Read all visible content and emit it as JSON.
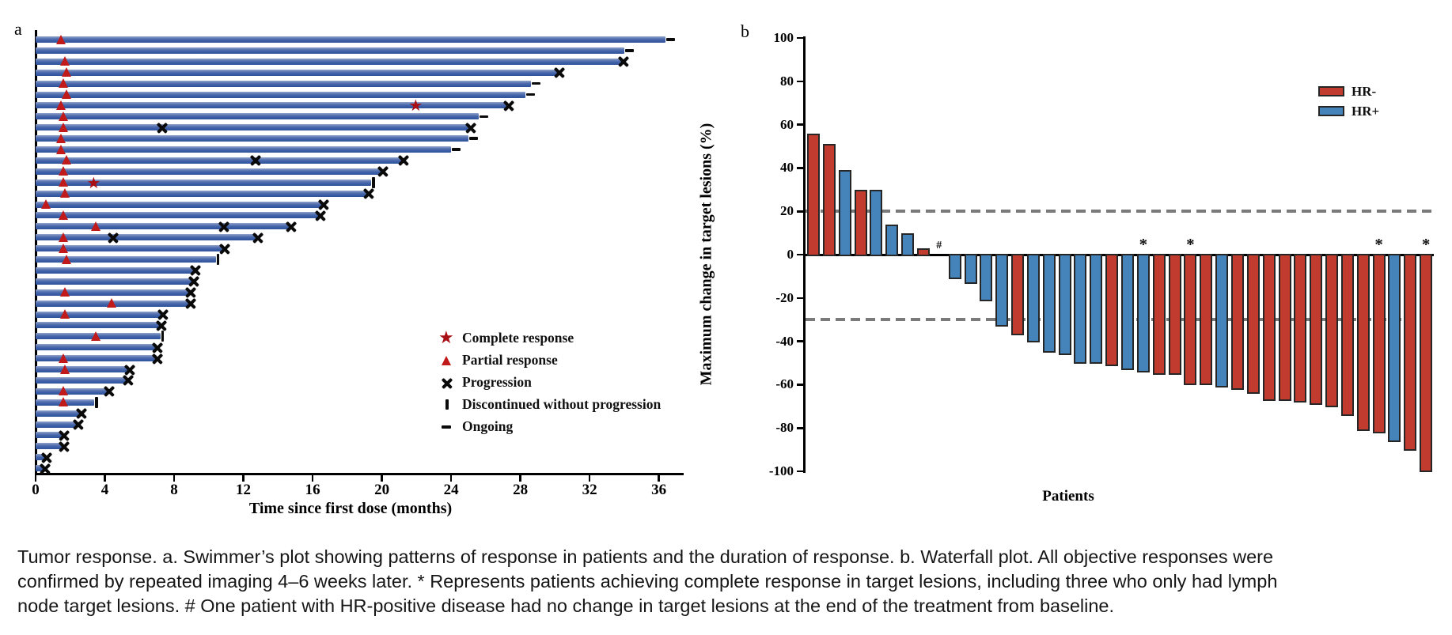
{
  "figure": {
    "panel_a_label": "a",
    "panel_b_label": "b"
  },
  "colors": {
    "swimmer_bar": "#3a5ea6",
    "response_red": "#c01a1a",
    "cr_star_red": "#a81016",
    "hr_neg": "#c13b2e",
    "hr_pos": "#4583bb",
    "bar_border": "#262626",
    "dashed_line": "#7a7a7a",
    "axis": "#000000"
  },
  "caption": {
    "lines": [
      "Tumor response. a. Swimmer’s plot showing patterns of response in patients and the duration of response. b. Waterfall plot. All objective responses were",
      "confirmed by repeated imaging 4–6 weeks later. * Represents patients achieving complete response in target lesions, including three who only had lymph",
      "node target lesions. # One patient with HR-positive disease had no change in target lesions at the end of the treatment from baseline."
    ]
  },
  "chart_data": [
    {
      "id": "swimmer",
      "type": "bar",
      "orientation": "horizontal",
      "xlabel": "Time since first dose (months)",
      "x_ticks": [
        0,
        4,
        8,
        12,
        16,
        20,
        24,
        28,
        32,
        36
      ],
      "xlim": [
        0,
        37.4
      ],
      "grid": false,
      "legend_position": "lower-right-inside",
      "legend": [
        {
          "symbol": "star",
          "label": "Complete response"
        },
        {
          "symbol": "triangle",
          "label": "Partial response"
        },
        {
          "symbol": "cross",
          "label": "Progression"
        },
        {
          "symbol": "vbar",
          "label": "Discontinued without progression"
        },
        {
          "symbol": "dash",
          "label": "Ongoing"
        }
      ],
      "bars": [
        {
          "months": 36.4,
          "pr": 1.5,
          "end": "ongoing"
        },
        {
          "months": 34.0,
          "end": "ongoing"
        },
        {
          "months": 33.9,
          "pr": 1.7,
          "end": "progression"
        },
        {
          "months": 30.2,
          "pr": 1.8,
          "end": "progression"
        },
        {
          "months": 28.6,
          "pr": 1.6,
          "end": "ongoing"
        },
        {
          "months": 28.3,
          "pr": 1.8,
          "end": "ongoing"
        },
        {
          "months": 27.3,
          "pr": 1.5,
          "cr": 22.0,
          "end": "progression"
        },
        {
          "months": 25.6,
          "pr": 1.6,
          "end": "ongoing"
        },
        {
          "months": 25.1,
          "pr": 1.6,
          "prog": [
            7.3
          ],
          "end": "progression"
        },
        {
          "months": 25.0,
          "pr": 1.5,
          "end": "ongoing"
        },
        {
          "months": 24.0,
          "pr": 1.5,
          "end": "ongoing"
        },
        {
          "months": 21.2,
          "pr": 1.8,
          "prog": [
            12.7
          ],
          "end": "progression"
        },
        {
          "months": 20.0,
          "pr": 1.6,
          "end": "progression"
        },
        {
          "months": 19.4,
          "pr": 1.6,
          "cr": 3.4,
          "end": "discontinued"
        },
        {
          "months": 19.2,
          "pr": 1.7,
          "end": "progression"
        },
        {
          "months": 16.6,
          "pr": 0.6,
          "end": "progression"
        },
        {
          "months": 16.4,
          "pr": 1.6,
          "end": "progression"
        },
        {
          "months": 14.7,
          "pr": 3.5,
          "prog": [
            10.9
          ],
          "end": "progression"
        },
        {
          "months": 12.8,
          "pr": 1.6,
          "prog": [
            4.5
          ],
          "end": "progression"
        },
        {
          "months": 10.9,
          "pr": 1.6,
          "end": "progression"
        },
        {
          "months": 10.4,
          "pr": 1.8,
          "end": "discontinued"
        },
        {
          "months": 9.2,
          "end": "progression"
        },
        {
          "months": 9.1,
          "end": "progression"
        },
        {
          "months": 8.9,
          "pr": 1.7,
          "end": "progression"
        },
        {
          "months": 8.9,
          "pr": 4.4,
          "end": "progression"
        },
        {
          "months": 7.3,
          "pr": 1.7,
          "end": "progression"
        },
        {
          "months": 7.2,
          "end": "progression"
        },
        {
          "months": 7.2,
          "pr": 3.5,
          "end": "discontinued"
        },
        {
          "months": 7.0,
          "end": "progression"
        },
        {
          "months": 7.0,
          "pr": 1.6,
          "end": "progression"
        },
        {
          "months": 5.4,
          "pr": 1.7,
          "end": "progression"
        },
        {
          "months": 5.3,
          "end": "progression"
        },
        {
          "months": 4.2,
          "pr": 1.6,
          "end": "progression"
        },
        {
          "months": 3.4,
          "pr": 1.6,
          "end": "discontinued"
        },
        {
          "months": 2.6,
          "end": "progression"
        },
        {
          "months": 2.4,
          "end": "progression"
        },
        {
          "months": 1.6,
          "end": "progression"
        },
        {
          "months": 1.6,
          "end": "progression"
        },
        {
          "months": 0.6,
          "end": "progression"
        },
        {
          "months": 0.5,
          "end": "progression"
        }
      ]
    },
    {
      "id": "waterfall",
      "type": "bar",
      "ylabel": "Maximum change in target lesions (%)",
      "xlabel": "Patients",
      "ylim": [
        -100,
        100
      ],
      "y_ticks": [
        100,
        80,
        60,
        40,
        20,
        0,
        -20,
        -40,
        -60,
        -80,
        -100
      ],
      "reference_lines": [
        20,
        -30
      ],
      "grid": false,
      "legend_position": "upper-right-inside",
      "legend": [
        {
          "label": "HR-",
          "group": "HR-"
        },
        {
          "label": "HR+",
          "group": "HR+"
        }
      ],
      "values": [
        {
          "value": 56,
          "group": "HR-"
        },
        {
          "value": 51,
          "group": "HR-"
        },
        {
          "value": 39,
          "group": "HR+"
        },
        {
          "value": 30,
          "group": "HR-"
        },
        {
          "value": 30,
          "group": "HR+"
        },
        {
          "value": 14,
          "group": "HR+"
        },
        {
          "value": 10,
          "group": "HR+"
        },
        {
          "value": 3,
          "group": "HR-"
        },
        {
          "value": 0,
          "group": "HR+",
          "note": "#"
        },
        {
          "value": -11,
          "group": "HR+"
        },
        {
          "value": -13,
          "group": "HR+"
        },
        {
          "value": -21,
          "group": "HR+"
        },
        {
          "value": -33,
          "group": "HR+"
        },
        {
          "value": -37,
          "group": "HR-"
        },
        {
          "value": -40,
          "group": "HR+"
        },
        {
          "value": -45,
          "group": "HR+"
        },
        {
          "value": -46,
          "group": "HR+"
        },
        {
          "value": -50,
          "group": "HR+"
        },
        {
          "value": -50,
          "group": "HR+"
        },
        {
          "value": -51,
          "group": "HR-"
        },
        {
          "value": -53,
          "group": "HR+"
        },
        {
          "value": -54,
          "group": "HR+",
          "note": "*"
        },
        {
          "value": -55,
          "group": "HR-"
        },
        {
          "value": -55,
          "group": "HR-"
        },
        {
          "value": -60,
          "group": "HR-",
          "note": "*"
        },
        {
          "value": -60,
          "group": "HR-"
        },
        {
          "value": -61,
          "group": "HR+"
        },
        {
          "value": -62,
          "group": "HR-"
        },
        {
          "value": -64,
          "group": "HR-"
        },
        {
          "value": -67,
          "group": "HR-"
        },
        {
          "value": -67,
          "group": "HR-"
        },
        {
          "value": -68,
          "group": "HR-"
        },
        {
          "value": -69,
          "group": "HR-"
        },
        {
          "value": -70,
          "group": "HR-"
        },
        {
          "value": -74,
          "group": "HR-"
        },
        {
          "value": -81,
          "group": "HR-"
        },
        {
          "value": -82,
          "group": "HR-",
          "note": "*"
        },
        {
          "value": -86,
          "group": "HR+"
        },
        {
          "value": -90,
          "group": "HR-"
        },
        {
          "value": -100,
          "group": "HR-",
          "note": "*"
        }
      ]
    }
  ]
}
